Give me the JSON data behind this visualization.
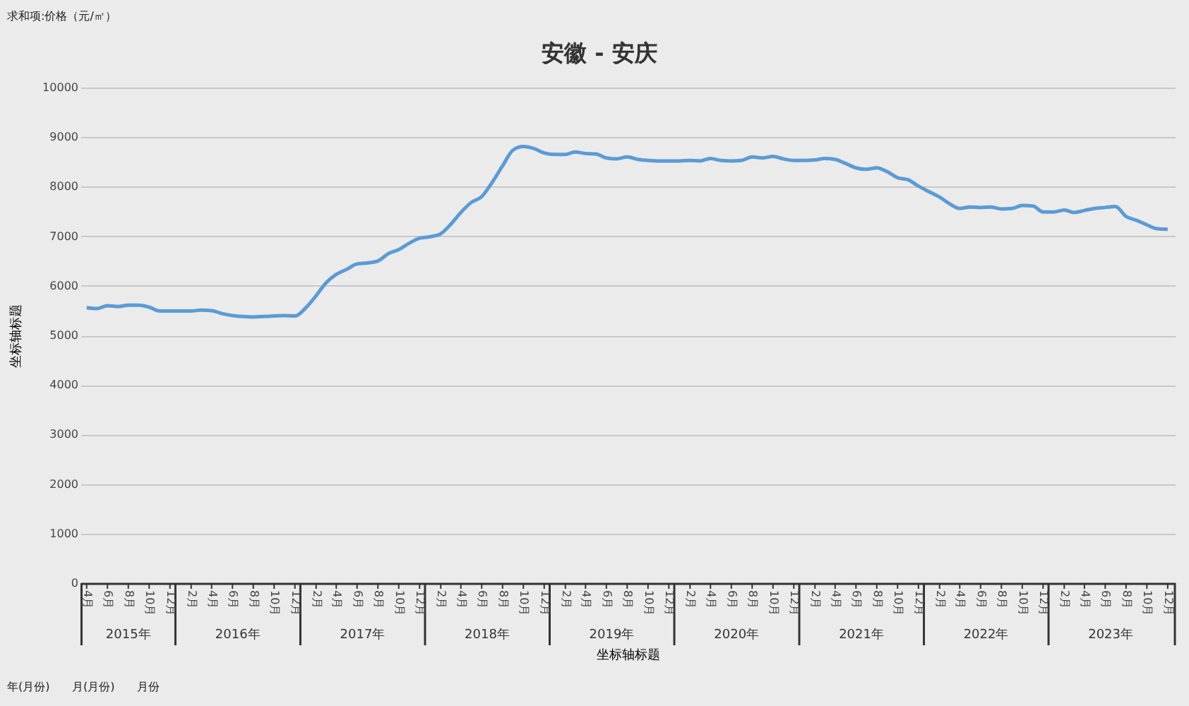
{
  "chart_data": {
    "type": "line",
    "title": "安徽 - 安庆",
    "xlabel": "坐标轴标题",
    "ylabel": "坐标轴标题",
    "annotations": [
      "求和项:价格（元/㎡）",
      "2015年",
      "2016年",
      "2017年",
      "2018年",
      "2019年",
      "2020年",
      "2021年",
      "2022年",
      "2023年",
      "年(月份)",
      "月(月份)",
      "月份"
    ],
    "x": [
      "2015-04",
      "2015-05",
      "2015-06",
      "2015-07",
      "2015-08",
      "2015-09",
      "2015-10",
      "2015-11",
      "2015-12",
      "2016-01",
      "2016-02",
      "2016-03",
      "2016-04",
      "2016-05",
      "2016-06",
      "2016-07",
      "2016-08",
      "2016-09",
      "2016-10",
      "2016-11",
      "2016-12",
      "2017-01",
      "2017-02",
      "2017-03",
      "2017-04",
      "2017-05",
      "2017-06",
      "2017-07",
      "2017-08",
      "2017-09",
      "2017-10",
      "2017-11",
      "2017-12",
      "2018-01",
      "2018-02",
      "2018-03",
      "2018-04",
      "2018-05",
      "2018-06",
      "2018-07",
      "2018-08",
      "2018-09",
      "2018-10",
      "2018-11",
      "2018-12",
      "2019-01",
      "2019-02",
      "2019-03",
      "2019-04",
      "2019-05",
      "2019-06",
      "2019-07",
      "2019-08",
      "2019-09",
      "2019-10",
      "2019-11",
      "2019-12",
      "2020-01",
      "2020-02",
      "2020-03",
      "2020-04",
      "2020-05",
      "2020-06",
      "2020-07",
      "2020-08",
      "2020-09",
      "2020-10",
      "2020-11",
      "2020-12",
      "2021-01",
      "2021-02",
      "2021-03",
      "2021-04",
      "2021-05",
      "2021-06",
      "2021-07",
      "2021-08",
      "2021-09",
      "2021-10",
      "2021-11",
      "2021-12",
      "2022-01",
      "2022-02",
      "2022-03",
      "2022-04",
      "2022-05",
      "2022-06",
      "2022-07",
      "2022-08",
      "2022-09",
      "2022-10",
      "2022-11",
      "2022-12",
      "2023-01",
      "2023-02",
      "2023-03",
      "2023-04",
      "2023-05",
      "2023-06",
      "2023-07",
      "2023-08",
      "2023-09",
      "2023-10",
      "2023-11",
      "2023-12"
    ],
    "series": [
      {
        "color": "#5b9bd5",
        "values": [
          5560,
          5540,
          5600,
          5580,
          5610,
          5610,
          5570,
          5490,
          5490,
          5490,
          5490,
          5510,
          5500,
          5440,
          5400,
          5380,
          5370,
          5380,
          5390,
          5400,
          5390,
          5550,
          5800,
          6050,
          6230,
          6330,
          6440,
          6460,
          6500,
          6650,
          6730,
          6860,
          6960,
          6990,
          7050,
          7230,
          7480,
          7680,
          7800,
          8080,
          8420,
          8740,
          8810,
          8770,
          8680,
          8650,
          8650,
          8700,
          8670,
          8660,
          8580,
          8560,
          8600,
          8550,
          8530,
          8520,
          8520,
          8520,
          8530,
          8520,
          8570,
          8530,
          8520,
          8530,
          8600,
          8580,
          8610,
          8560,
          8530,
          8530,
          8540,
          8570,
          8550,
          8470,
          8380,
          8350,
          8380,
          8300,
          8180,
          8140,
          8010,
          7900,
          7790,
          7660,
          7560,
          7590,
          7580,
          7590,
          7550,
          7560,
          7620,
          7610,
          7490,
          7490,
          7530,
          7480,
          7520,
          7560,
          7580,
          7600,
          7400,
          7320,
          7230,
          7150,
          7140
        ]
      }
    ],
    "xlim": [
      "2015-03-14",
      "2023-12-22"
    ],
    "xticks": [
      {
        "value": "2015-04",
        "label": "4月"
      },
      {
        "value": "2015-06",
        "label": "6月"
      },
      {
        "value": "2015-08",
        "label": "8月"
      },
      {
        "value": "2015-10",
        "label": "10月"
      },
      {
        "value": "2015-12",
        "label": "12月"
      },
      {
        "value": "2016-02",
        "label": "2月"
      },
      {
        "value": "2016-04",
        "label": "4月"
      },
      {
        "value": "2016-06",
        "label": "6月"
      },
      {
        "value": "2016-08",
        "label": "8月"
      },
      {
        "value": "2016-10",
        "label": "10月"
      },
      {
        "value": "2016-12",
        "label": "12月"
      },
      {
        "value": "2017-02",
        "label": "2月"
      },
      {
        "value": "2017-04",
        "label": "4月"
      },
      {
        "value": "2017-06",
        "label": "6月"
      },
      {
        "value": "2017-08",
        "label": "8月"
      },
      {
        "value": "2017-10",
        "label": "10月"
      },
      {
        "value": "2017-12",
        "label": "12月"
      },
      {
        "value": "2018-02",
        "label": "2月"
      },
      {
        "value": "2018-04",
        "label": "4月"
      },
      {
        "value": "2018-06",
        "label": "6月"
      },
      {
        "value": "2018-08",
        "label": "8月"
      },
      {
        "value": "2018-10",
        "label": "10月"
      },
      {
        "value": "2018-12",
        "label": "12月"
      },
      {
        "value": "2019-02",
        "label": "2月"
      },
      {
        "value": "2019-04",
        "label": "4月"
      },
      {
        "value": "2019-06",
        "label": "6月"
      },
      {
        "value": "2019-08",
        "label": "8月"
      },
      {
        "value": "2019-10",
        "label": "10月"
      },
      {
        "value": "2019-12",
        "label": "12月"
      },
      {
        "value": "2020-02",
        "label": "2月"
      },
      {
        "value": "2020-04",
        "label": "4月"
      },
      {
        "value": "2020-06",
        "label": "6月"
      },
      {
        "value": "2020-08",
        "label": "8月"
      },
      {
        "value": "2020-10",
        "label": "10月"
      },
      {
        "value": "2020-12",
        "label": "12月"
      },
      {
        "value": "2021-02",
        "label": "2月"
      },
      {
        "value": "2021-04",
        "label": "4月"
      },
      {
        "value": "2021-06",
        "label": "6月"
      },
      {
        "value": "2021-08",
        "label": "8月"
      },
      {
        "value": "2021-10",
        "label": "10月"
      },
      {
        "value": "2021-12",
        "label": "12月"
      },
      {
        "value": "2022-02",
        "label": "2月"
      },
      {
        "value": "2022-04",
        "label": "4月"
      },
      {
        "value": "2022-06",
        "label": "6月"
      },
      {
        "value": "2022-08",
        "label": "8月"
      },
      {
        "value": "2022-10",
        "label": "10月"
      },
      {
        "value": "2022-12",
        "label": "12月"
      },
      {
        "value": "2023-02",
        "label": "2月"
      },
      {
        "value": "2023-04",
        "label": "4月"
      },
      {
        "value": "2023-06",
        "label": "6月"
      },
      {
        "value": "2023-08",
        "label": "8月"
      },
      {
        "value": "2023-10",
        "label": "10月"
      },
      {
        "value": "2023-12",
        "label": "12月"
      }
    ],
    "ylim": [
      0,
      10000
    ],
    "yticks": [
      0,
      1000,
      2000,
      3000,
      4000,
      5000,
      6000,
      7000,
      8000,
      9000,
      10000
    ],
    "grid": "y",
    "legend": false,
    "marker": "none",
    "line_style": "solid"
  }
}
